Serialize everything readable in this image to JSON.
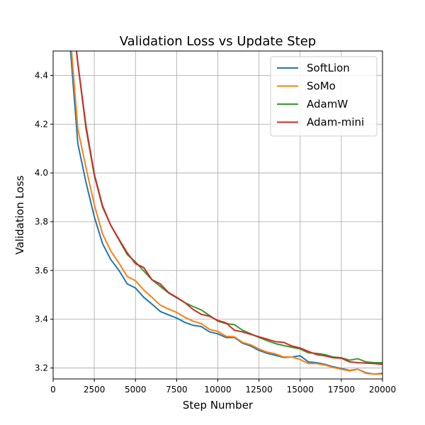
{
  "chart_data": {
    "type": "line",
    "title": "Validation Loss vs Update Step",
    "xlabel": "Step Number",
    "ylabel": "Validation Loss",
    "xlim": [
      0,
      20000
    ],
    "ylim": [
      3.155,
      4.5
    ],
    "xticks": [
      "0",
      "2500",
      "5000",
      "7500",
      "10000",
      "12500",
      "15000",
      "17500",
      "20000"
    ],
    "xtick_values": [
      0,
      2500,
      5000,
      7500,
      10000,
      12500,
      15000,
      17500,
      20000
    ],
    "yticks": [
      "3.2",
      "3.4",
      "3.6",
      "3.8",
      "4.0",
      "4.2",
      "4.4"
    ],
    "ytick_values": [
      3.2,
      3.4,
      3.6,
      3.8,
      4.0,
      4.2,
      4.4
    ],
    "grid": true,
    "legend_position": "top-right",
    "x": [
      1000,
      1500,
      2000,
      2500,
      3000,
      3500,
      4000,
      4500,
      5000,
      5500,
      6000,
      6500,
      7000,
      7500,
      8000,
      8500,
      9000,
      9500,
      10000,
      10500,
      11000,
      11500,
      12000,
      12500,
      13000,
      13500,
      14000,
      14500,
      15000,
      15500,
      16000,
      16500,
      17000,
      17500,
      18000,
      18500,
      19000,
      19500,
      20000
    ],
    "series": [
      {
        "name": "SoftLion",
        "color": "#1f77b4",
        "values": [
          4.55,
          4.12,
          3.96,
          3.82,
          3.71,
          3.645,
          3.6,
          3.545,
          3.528,
          3.49,
          3.462,
          3.432,
          3.418,
          3.405,
          3.387,
          3.375,
          3.37,
          3.348,
          3.34,
          3.325,
          3.325,
          3.302,
          3.29,
          3.272,
          3.26,
          3.252,
          3.243,
          3.245,
          3.25,
          3.225,
          3.222,
          3.215,
          3.205,
          3.198,
          3.19,
          3.195,
          3.18,
          3.175,
          3.178
        ]
      },
      {
        "name": "SoMo",
        "color": "#ff7f0e",
        "values": [
          4.6,
          4.18,
          4.02,
          3.87,
          3.75,
          3.68,
          3.63,
          3.575,
          3.558,
          3.52,
          3.49,
          3.458,
          3.442,
          3.428,
          3.408,
          3.392,
          3.382,
          3.358,
          3.35,
          3.33,
          3.328,
          3.305,
          3.295,
          3.278,
          3.265,
          3.258,
          3.245,
          3.245,
          3.235,
          3.218,
          3.218,
          3.212,
          3.202,
          3.195,
          3.188,
          3.195,
          3.178,
          3.175,
          3.175
        ]
      },
      {
        "name": "AdamW",
        "color": "#2ca02c",
        "values": [
          4.75,
          4.45,
          4.18,
          3.99,
          3.86,
          3.785,
          3.725,
          3.665,
          3.635,
          3.598,
          3.562,
          3.535,
          3.508,
          3.488,
          3.468,
          3.452,
          3.438,
          3.415,
          3.392,
          3.382,
          3.378,
          3.355,
          3.34,
          3.325,
          3.312,
          3.3,
          3.292,
          3.285,
          3.278,
          3.262,
          3.26,
          3.255,
          3.245,
          3.242,
          3.232,
          3.238,
          3.225,
          3.222,
          3.222
        ]
      },
      {
        "name": "Adam-mini",
        "color": "#d62728",
        "values": [
          4.75,
          4.45,
          4.19,
          3.995,
          3.865,
          3.785,
          3.728,
          3.672,
          3.628,
          3.612,
          3.562,
          3.545,
          3.51,
          3.49,
          3.468,
          3.44,
          3.42,
          3.412,
          3.395,
          3.385,
          3.355,
          3.348,
          3.338,
          3.328,
          3.318,
          3.308,
          3.305,
          3.29,
          3.282,
          3.268,
          3.255,
          3.25,
          3.242,
          3.24,
          3.225,
          3.222,
          3.22,
          3.218,
          3.215
        ]
      }
    ]
  }
}
